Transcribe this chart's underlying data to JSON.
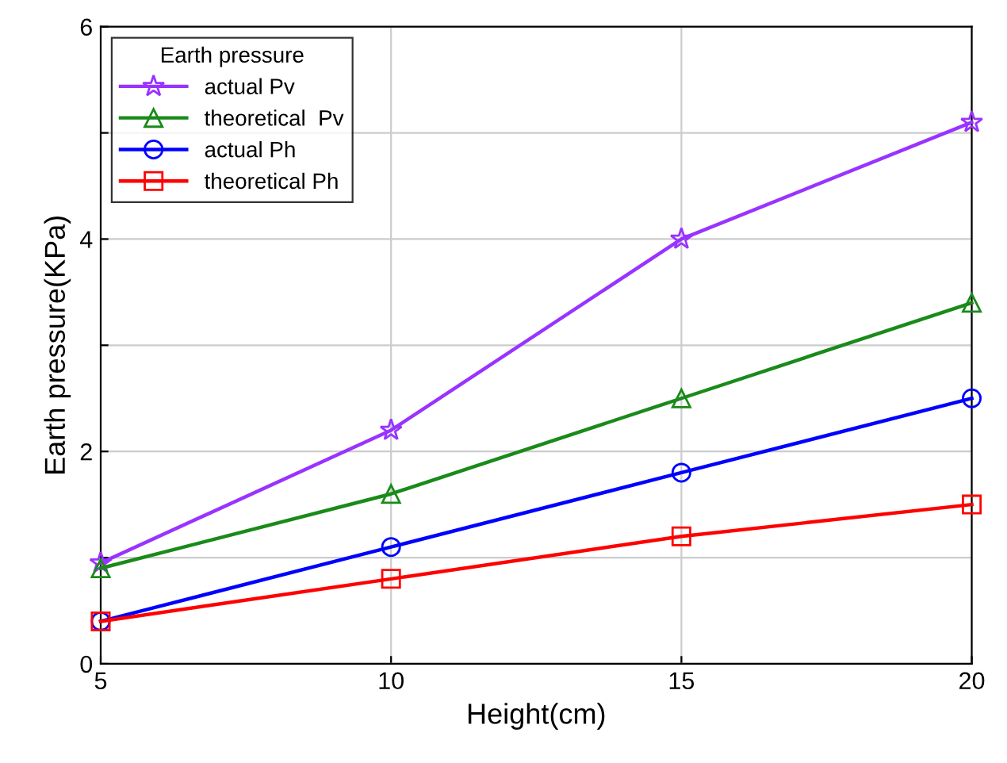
{
  "chart_data": {
    "type": "line",
    "xlabel": "Height(cm)",
    "ylabel": "Earth pressure(KPa)",
    "legend_title": "Earth pressure",
    "x": [
      5,
      10,
      15,
      20
    ],
    "xlim": [
      5,
      20
    ],
    "xticks": [
      5,
      10,
      15,
      20
    ],
    "ylim": [
      0,
      6
    ],
    "yticks": [
      0,
      {
        "value": 1,
        "label": null
      },
      2,
      {
        "value": 3,
        "label": null
      },
      4,
      {
        "value": 5,
        "label": null
      },
      6
    ],
    "grid": true,
    "legend": "top left",
    "line_style": "solid",
    "series": [
      {
        "name": "actual Pv",
        "color": "#9933ff",
        "marker": "star",
        "values": [
          0.95,
          2.2,
          4.0,
          5.1
        ]
      },
      {
        "name": "theoretical  Pv",
        "color": "#1a8a1a",
        "marker": "triangle",
        "values": [
          0.9,
          1.6,
          2.5,
          3.4
        ]
      },
      {
        "name": "actual Ph",
        "color": "#0000ff",
        "marker": "circle",
        "values": [
          0.4,
          1.1,
          1.8,
          2.5
        ]
      },
      {
        "name": "theoretical Ph",
        "color": "#ff0000",
        "marker": "square",
        "values": [
          0.4,
          0.8,
          1.2,
          1.5
        ]
      }
    ]
  }
}
